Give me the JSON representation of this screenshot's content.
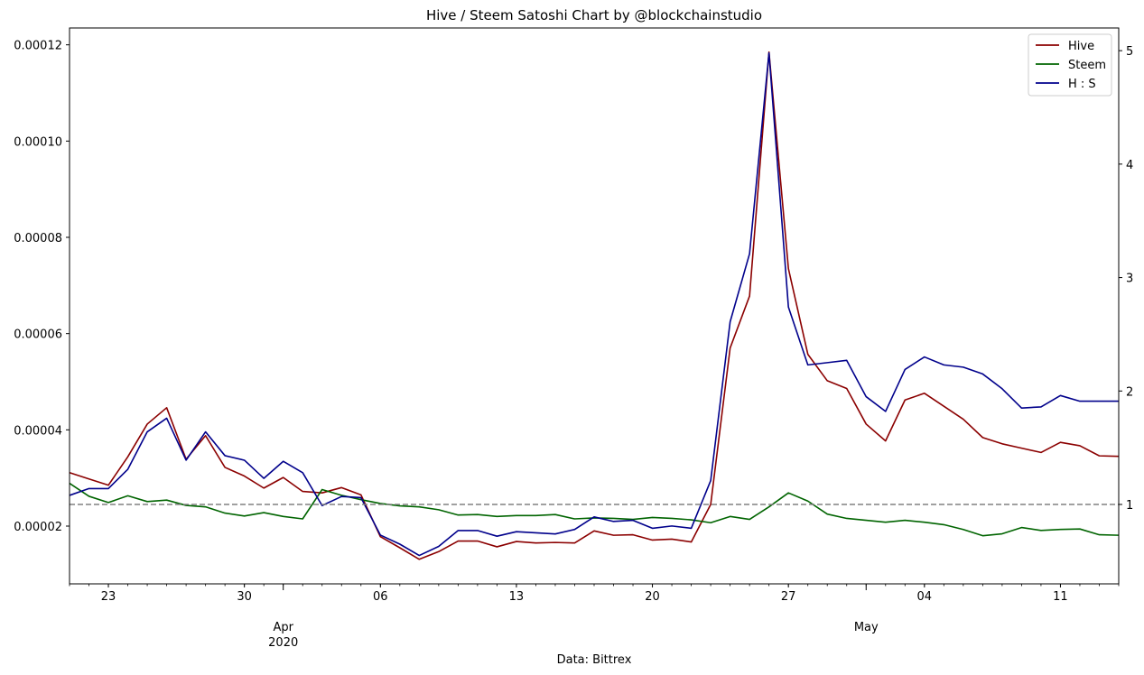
{
  "chart_data": {
    "type": "line",
    "title": "Hive / Steem Satoshi Chart by @blockchainstudio",
    "xlabel": "Data: Bittrex",
    "legend_position": "top-right",
    "grid": false,
    "x": [
      "2020-03-21",
      "2020-03-22",
      "2020-03-23",
      "2020-03-24",
      "2020-03-25",
      "2020-03-26",
      "2020-03-27",
      "2020-03-28",
      "2020-03-29",
      "2020-03-30",
      "2020-03-31",
      "2020-04-01",
      "2020-04-02",
      "2020-04-03",
      "2020-04-04",
      "2020-04-05",
      "2020-04-06",
      "2020-04-07",
      "2020-04-08",
      "2020-04-09",
      "2020-04-10",
      "2020-04-11",
      "2020-04-12",
      "2020-04-13",
      "2020-04-14",
      "2020-04-15",
      "2020-04-16",
      "2020-04-17",
      "2020-04-18",
      "2020-04-19",
      "2020-04-20",
      "2020-04-21",
      "2020-04-22",
      "2020-04-23",
      "2020-04-24",
      "2020-04-25",
      "2020-04-26",
      "2020-04-27",
      "2020-04-28",
      "2020-04-29",
      "2020-04-30",
      "2020-05-01",
      "2020-05-02",
      "2020-05-03",
      "2020-05-04",
      "2020-05-05",
      "2020-05-06",
      "2020-05-07",
      "2020-05-08",
      "2020-05-09",
      "2020-05-10",
      "2020-05-11",
      "2020-05-12",
      "2020-05-13",
      "2020-05-14"
    ],
    "xlim": [
      "2020-03-21",
      "2020-05-14"
    ],
    "x_ticks": [
      {
        "date": "2020-03-23",
        "label": "23"
      },
      {
        "date": "2020-03-30",
        "label": "30"
      },
      {
        "date": "2020-04-06",
        "label": "06"
      },
      {
        "date": "2020-04-13",
        "label": "13"
      },
      {
        "date": "2020-04-20",
        "label": "20"
      },
      {
        "date": "2020-04-27",
        "label": "27"
      },
      {
        "date": "2020-05-04",
        "label": "04"
      },
      {
        "date": "2020-05-11",
        "label": "11"
      }
    ],
    "x_month_ticks": [
      {
        "date": "2020-04-01",
        "label": "Apr",
        "sublabel": "2020"
      },
      {
        "date": "2020-05-01",
        "label": "May",
        "sublabel": ""
      }
    ],
    "y_left": {
      "range": [
        8e-06,
        0.0001235
      ],
      "ticks": [
        2e-05,
        4e-05,
        6e-05,
        8e-05,
        0.0001,
        0.00012
      ],
      "tick_labels": [
        "0.00002",
        "0.00004",
        "0.00006",
        "0.00008",
        "0.00010",
        "0.00012"
      ]
    },
    "y_right": {
      "range": [
        0.3,
        5.2
      ],
      "ticks": [
        1,
        2,
        3,
        4,
        5
      ],
      "tick_labels": [
        "1",
        "2",
        "3",
        "4",
        "5"
      ]
    },
    "series": [
      {
        "name": "Hive",
        "axis": "left",
        "color": "#8b0000",
        "values": [
          3.11e-05,
          2.98e-05,
          2.85e-05,
          3.44e-05,
          4.12e-05,
          4.46e-05,
          3.39e-05,
          3.88e-05,
          3.22e-05,
          3.04e-05,
          2.79e-05,
          3.01e-05,
          2.72e-05,
          2.69e-05,
          2.8e-05,
          2.65e-05,
          1.78e-05,
          1.55e-05,
          1.31e-05,
          1.47e-05,
          1.69e-05,
          1.69e-05,
          1.57e-05,
          1.68e-05,
          1.65e-05,
          1.66e-05,
          1.65e-05,
          1.9e-05,
          1.81e-05,
          1.82e-05,
          1.71e-05,
          1.73e-05,
          1.67e-05,
          2.45e-05,
          5.7e-05,
          6.78e-05,
          0.0001185,
          7.35e-05,
          5.57e-05,
          5.02e-05,
          4.86e-05,
          4.12e-05,
          3.77e-05,
          4.62e-05,
          4.76e-05,
          4.49e-05,
          4.22e-05,
          3.84e-05,
          3.71e-05,
          3.62e-05,
          3.53e-05,
          3.74e-05,
          3.67e-05,
          3.46e-05,
          3.45e-05
        ]
      },
      {
        "name": "Steem",
        "axis": "left",
        "color": "#006400",
        "values": [
          2.89e-05,
          2.62e-05,
          2.49e-05,
          2.63e-05,
          2.51e-05,
          2.54e-05,
          2.43e-05,
          2.4e-05,
          2.27e-05,
          2.21e-05,
          2.28e-05,
          2.2e-05,
          2.15e-05,
          2.76e-05,
          2.64e-05,
          2.55e-05,
          2.47e-05,
          2.42e-05,
          2.4e-05,
          2.34e-05,
          2.23e-05,
          2.24e-05,
          2.2e-05,
          2.22e-05,
          2.22e-05,
          2.24e-05,
          2.15e-05,
          2.17e-05,
          2.16e-05,
          2.14e-05,
          2.18e-05,
          2.16e-05,
          2.13e-05,
          2.07e-05,
          2.2e-05,
          2.14e-05,
          2.4e-05,
          2.69e-05,
          2.52e-05,
          2.25e-05,
          2.16e-05,
          2.12e-05,
          2.08e-05,
          2.12e-05,
          2.08e-05,
          2.03e-05,
          1.93e-05,
          1.8e-05,
          1.84e-05,
          1.97e-05,
          1.91e-05,
          1.93e-05,
          1.94e-05,
          1.82e-05,
          1.81e-05
        ]
      },
      {
        "name": "H : S",
        "axis": "right",
        "color": "#00008b",
        "values": [
          1.08,
          1.14,
          1.14,
          1.31,
          1.64,
          1.76,
          1.39,
          1.64,
          1.43,
          1.39,
          1.23,
          1.38,
          1.28,
          0.99,
          1.07,
          1.06,
          0.73,
          0.65,
          0.55,
          0.63,
          0.77,
          0.77,
          0.72,
          0.76,
          0.75,
          0.74,
          0.78,
          0.89,
          0.85,
          0.86,
          0.79,
          0.81,
          0.79,
          1.21,
          2.61,
          3.21,
          4.98,
          2.74,
          2.23,
          2.25,
          2.27,
          1.95,
          1.82,
          2.19,
          2.3,
          2.23,
          2.21,
          2.15,
          2.02,
          1.85,
          1.86,
          1.96,
          1.91,
          1.91,
          1.91
        ]
      }
    ],
    "reference_line": {
      "axis": "right",
      "value": 1,
      "color": "#808080",
      "style": "dashed"
    }
  }
}
